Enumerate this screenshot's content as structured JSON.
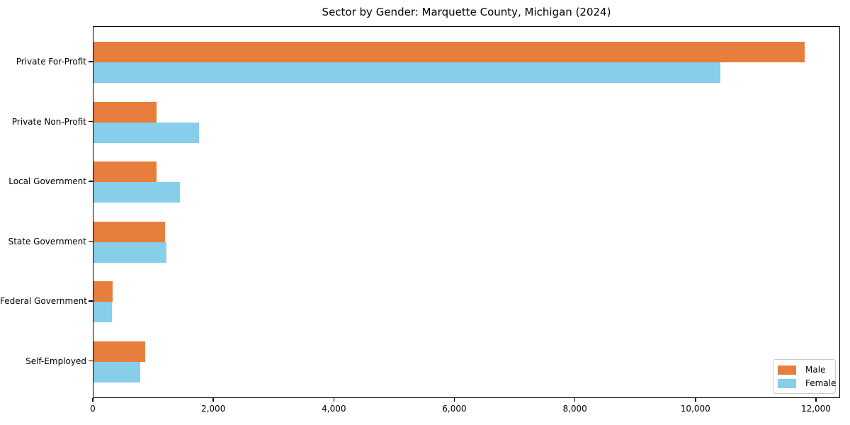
{
  "chart_data": {
    "type": "bar",
    "orientation": "horizontal",
    "title": "Sector by Gender: Marquette County, Michigan (2024)",
    "categories": [
      "Private For-Profit",
      "Private Non-Profit",
      "Local Government",
      "State Government",
      "Federal Government",
      "Self-Employed"
    ],
    "series": [
      {
        "name": "Male",
        "color": "#e87e3d",
        "values": [
          11800,
          1050,
          1050,
          1190,
          320,
          860
        ]
      },
      {
        "name": "Female",
        "color": "#87ceeb",
        "values": [
          10400,
          1750,
          1430,
          1210,
          300,
          780
        ]
      }
    ],
    "xlim": [
      0,
      12400
    ],
    "x_ticks": [
      0,
      2000,
      4000,
      6000,
      8000,
      10000,
      12000
    ],
    "x_tick_labels": [
      "0",
      "2,000",
      "4,000",
      "6,000",
      "8,000",
      "10,000",
      "12,000"
    ],
    "ylabel": "",
    "xlabel": "",
    "grid": false,
    "legend_position": "lower right",
    "colors": {
      "male": "#e87e3d",
      "female": "#87ceeb",
      "spine": "#000000",
      "background": "#ffffff",
      "legend_border": "#cccccc"
    }
  }
}
